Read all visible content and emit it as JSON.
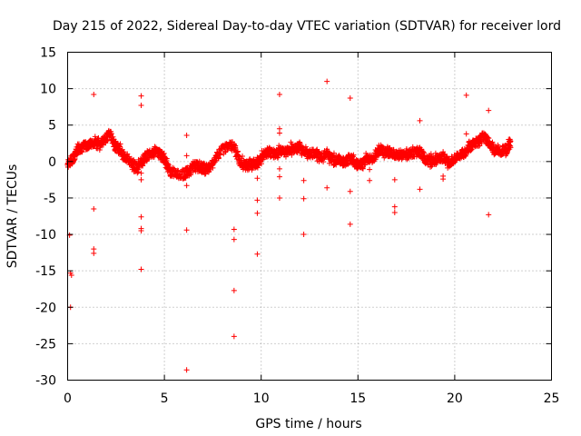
{
  "chart_data": {
    "type": "scatter",
    "title": "Day 215 of 2022, Sidereal Day-to-day VTEC variation (SDTVAR) for receiver lord",
    "xlabel": "GPS time / hours",
    "ylabel": "SDTVAR / TECUs",
    "xlim": [
      0,
      25
    ],
    "ylim": [
      -30,
      15
    ],
    "xticks": [
      "0",
      "5",
      "10",
      "15",
      "20",
      "25"
    ],
    "yticks": [
      "15",
      "10",
      "5",
      "0",
      "-5",
      "-10",
      "-15",
      "-20",
      "-25",
      "-30"
    ],
    "grid": true,
    "marker": "+",
    "series_color": "#ff0000",
    "trend": [
      [
        0.0,
        -0.3
      ],
      [
        0.25,
        0.3
      ],
      [
        0.5,
        1.6
      ],
      [
        0.8,
        2.1
      ],
      [
        1.1,
        2.3
      ],
      [
        1.4,
        2.7
      ],
      [
        1.7,
        2.4
      ],
      [
        2.0,
        3.2
      ],
      [
        2.2,
        3.8
      ],
      [
        2.45,
        2.1
      ],
      [
        2.7,
        1.6
      ],
      [
        3.0,
        0.6
      ],
      [
        3.3,
        -0.2
      ],
      [
        3.6,
        -0.9
      ],
      [
        3.9,
        0.2
      ],
      [
        4.2,
        0.9
      ],
      [
        4.5,
        1.2
      ],
      [
        4.8,
        1.0
      ],
      [
        5.0,
        0.3
      ],
      [
        5.25,
        -1.2
      ],
      [
        5.6,
        -1.7
      ],
      [
        6.0,
        -1.8
      ],
      [
        6.3,
        -1.2
      ],
      [
        6.6,
        -0.5
      ],
      [
        6.9,
        -0.9
      ],
      [
        7.2,
        -1.1
      ],
      [
        7.5,
        -0.3
      ],
      [
        7.8,
        1.0
      ],
      [
        8.2,
        2.1
      ],
      [
        8.6,
        2.0
      ],
      [
        8.9,
        0.0
      ],
      [
        9.2,
        -0.6
      ],
      [
        9.5,
        -0.4
      ],
      [
        9.8,
        -0.2
      ],
      [
        10.1,
        1.0
      ],
      [
        10.4,
        1.3
      ],
      [
        10.7,
        1.0
      ],
      [
        11.0,
        1.5
      ],
      [
        11.3,
        1.4
      ],
      [
        11.6,
        1.8
      ],
      [
        11.9,
        2.0
      ],
      [
        12.2,
        1.4
      ],
      [
        12.5,
        1.1
      ],
      [
        12.8,
        1.2
      ],
      [
        13.1,
        0.6
      ],
      [
        13.4,
        1.0
      ],
      [
        13.7,
        0.2
      ],
      [
        14.0,
        0.2
      ],
      [
        14.3,
        -0.1
      ],
      [
        14.6,
        0.4
      ],
      [
        14.9,
        -0.2
      ],
      [
        15.2,
        -0.4
      ],
      [
        15.5,
        0.5
      ],
      [
        15.8,
        0.3
      ],
      [
        16.1,
        1.5
      ],
      [
        16.4,
        1.3
      ],
      [
        16.7,
        1.2
      ],
      [
        17.0,
        1.0
      ],
      [
        17.3,
        0.8
      ],
      [
        17.6,
        1.0
      ],
      [
        17.9,
        1.2
      ],
      [
        18.2,
        1.3
      ],
      [
        18.5,
        0.3
      ],
      [
        18.8,
        0.1
      ],
      [
        19.1,
        0.2
      ],
      [
        19.4,
        0.6
      ],
      [
        19.7,
        -0.1
      ],
      [
        20.0,
        0.4
      ],
      [
        20.3,
        0.9
      ],
      [
        20.6,
        1.4
      ],
      [
        20.9,
        2.3
      ],
      [
        21.2,
        2.8
      ],
      [
        21.5,
        3.6
      ],
      [
        21.8,
        2.4
      ],
      [
        22.1,
        1.5
      ],
      [
        22.4,
        1.3
      ],
      [
        22.7,
        1.7
      ],
      [
        22.9,
        2.6
      ]
    ],
    "outliers": [
      [
        0.1,
        -10.1
      ],
      [
        0.15,
        -15.3
      ],
      [
        0.2,
        -15.6
      ],
      [
        0.15,
        -20.0
      ],
      [
        1.35,
        9.2
      ],
      [
        1.35,
        -6.5
      ],
      [
        1.35,
        -12.0
      ],
      [
        1.35,
        -12.6
      ],
      [
        3.8,
        9.0
      ],
      [
        3.8,
        7.7
      ],
      [
        3.8,
        -1.6
      ],
      [
        3.8,
        -2.5
      ],
      [
        3.8,
        -7.6
      ],
      [
        3.8,
        -9.2
      ],
      [
        3.8,
        -9.5
      ],
      [
        3.8,
        -14.8
      ],
      [
        6.15,
        3.6
      ],
      [
        6.15,
        0.8
      ],
      [
        6.15,
        -3.3
      ],
      [
        6.15,
        -9.4
      ],
      [
        6.15,
        -28.6
      ],
      [
        8.6,
        -9.3
      ],
      [
        8.6,
        -10.7
      ],
      [
        8.6,
        -17.7
      ],
      [
        8.6,
        -24.0
      ],
      [
        9.8,
        -2.3
      ],
      [
        9.8,
        -5.3
      ],
      [
        9.8,
        -7.1
      ],
      [
        9.8,
        -12.7
      ],
      [
        10.95,
        9.2
      ],
      [
        10.95,
        4.5
      ],
      [
        10.95,
        3.9
      ],
      [
        10.95,
        -1.0
      ],
      [
        10.95,
        -2.1
      ],
      [
        10.95,
        -5.0
      ],
      [
        12.2,
        -2.6
      ],
      [
        12.2,
        -5.1
      ],
      [
        12.2,
        -10.0
      ],
      [
        13.4,
        11.0
      ],
      [
        13.4,
        -3.6
      ],
      [
        14.6,
        8.7
      ],
      [
        14.6,
        -4.1
      ],
      [
        14.6,
        -8.6
      ],
      [
        15.6,
        -1.1
      ],
      [
        15.6,
        -2.6
      ],
      [
        16.9,
        -2.5
      ],
      [
        16.9,
        -6.2
      ],
      [
        16.9,
        -7.0
      ],
      [
        18.2,
        5.6
      ],
      [
        18.2,
        -3.8
      ],
      [
        19.4,
        -2.0
      ],
      [
        19.4,
        -2.4
      ],
      [
        20.6,
        9.1
      ],
      [
        20.6,
        3.8
      ],
      [
        21.75,
        7.0
      ],
      [
        21.75,
        -7.3
      ]
    ]
  }
}
